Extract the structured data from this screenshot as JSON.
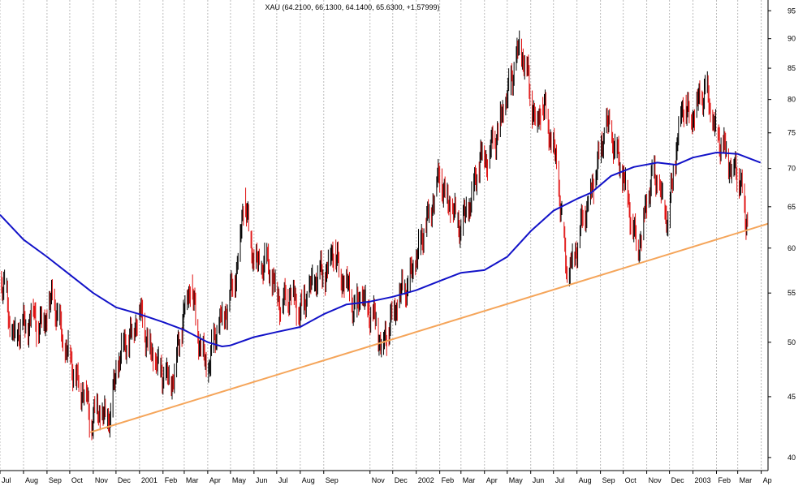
{
  "chart_data": {
    "type": "line",
    "subtype": "ohlc-bars",
    "title": "XAU (64.2100, 66.1300, 64.1400, 65.6300, +1.57999)",
    "xlabel": "",
    "ylabel": "",
    "y_scale": "log",
    "ylim": [
      39,
      97
    ],
    "y_ticks": [
      40,
      45,
      50,
      55,
      60,
      65,
      70,
      75,
      80,
      85,
      90,
      95
    ],
    "y_tick_labels": [
      "40",
      "45",
      "50",
      "55",
      "60",
      "65",
      "70",
      "75",
      "80",
      "85",
      "90",
      "95"
    ],
    "x_range": [
      "2000-07-01",
      "2003-04-10"
    ],
    "x_ticks": [
      {
        "label": "Jul",
        "date": "2000-07-01"
      },
      {
        "label": "Aug",
        "date": "2000-08-01"
      },
      {
        "label": "Sep",
        "date": "2000-09-01"
      },
      {
        "label": "Oct",
        "date": "2000-10-01"
      },
      {
        "label": "Nov",
        "date": "2000-11-01"
      },
      {
        "label": "Dec",
        "date": "2000-12-01"
      },
      {
        "label": "2001",
        "date": "2001-01-01"
      },
      {
        "label": "Feb",
        "date": "2001-02-01"
      },
      {
        "label": "Mar",
        "date": "2001-03-01"
      },
      {
        "label": "Apr",
        "date": "2001-04-01"
      },
      {
        "label": "May",
        "date": "2001-05-01"
      },
      {
        "label": "Jun",
        "date": "2001-06-01"
      },
      {
        "label": "Jul",
        "date": "2001-07-01"
      },
      {
        "label": "Aug",
        "date": "2001-08-01"
      },
      {
        "label": "Sep",
        "date": "2001-09-01"
      },
      {
        "label": "Nov",
        "date": "2001-11-01"
      },
      {
        "label": "Dec",
        "date": "2001-12-01"
      },
      {
        "label": "2002",
        "date": "2002-01-01"
      },
      {
        "label": "Feb",
        "date": "2002-02-01"
      },
      {
        "label": "Mar",
        "date": "2002-03-01"
      },
      {
        "label": "Apr",
        "date": "2002-04-01"
      },
      {
        "label": "May",
        "date": "2002-05-01"
      },
      {
        "label": "Jun",
        "date": "2002-06-01"
      },
      {
        "label": "Jul",
        "date": "2002-07-01"
      },
      {
        "label": "Aug",
        "date": "2002-08-01"
      },
      {
        "label": "Sep",
        "date": "2002-09-01"
      },
      {
        "label": "Oct",
        "date": "2002-10-01"
      },
      {
        "label": "Nov",
        "date": "2002-11-01"
      },
      {
        "label": "Dec",
        "date": "2002-12-01"
      },
      {
        "label": "2003",
        "date": "2003-01-01"
      },
      {
        "label": "Feb",
        "date": "2003-02-01"
      },
      {
        "label": "Mar",
        "date": "2003-03-01"
      },
      {
        "label": "Ap",
        "date": "2003-04-01"
      }
    ],
    "grid": true,
    "price_closes": [
      [
        "2000-07-01",
        56.5
      ],
      [
        "2000-07-08",
        55.5
      ],
      [
        "2000-07-15",
        51.0
      ],
      [
        "2000-07-22",
        50.5
      ],
      [
        "2000-07-29",
        52.0
      ],
      [
        "2000-08-05",
        51.0
      ],
      [
        "2000-08-12",
        53.5
      ],
      [
        "2000-08-19",
        51.5
      ],
      [
        "2000-08-26",
        52.0
      ],
      [
        "2000-09-02",
        53.0
      ],
      [
        "2000-09-09",
        54.5
      ],
      [
        "2000-09-16",
        52.5
      ],
      [
        "2000-09-23",
        49.5
      ],
      [
        "2000-09-30",
        49.0
      ],
      [
        "2000-10-07",
        47.0
      ],
      [
        "2000-10-14",
        45.5
      ],
      [
        "2000-10-21",
        46.0
      ],
      [
        "2000-10-28",
        42.5
      ],
      [
        "2000-11-04",
        44.0
      ],
      [
        "2000-11-11",
        43.5
      ],
      [
        "2000-11-18",
        43.0
      ],
      [
        "2000-11-25",
        44.0
      ],
      [
        "2000-12-02",
        47.5
      ],
      [
        "2000-12-09",
        49.5
      ],
      [
        "2000-12-16",
        50.0
      ],
      [
        "2000-12-23",
        51.0
      ],
      [
        "2000-12-30",
        53.0
      ],
      [
        "2001-01-06",
        52.0
      ],
      [
        "2001-01-13",
        49.5
      ],
      [
        "2001-01-20",
        48.5
      ],
      [
        "2001-01-27",
        47.5
      ],
      [
        "2001-02-03",
        47.0
      ],
      [
        "2001-02-10",
        46.0
      ],
      [
        "2001-02-17",
        47.5
      ],
      [
        "2001-02-24",
        51.0
      ],
      [
        "2001-03-03",
        54.0
      ],
      [
        "2001-03-10",
        56.0
      ],
      [
        "2001-03-17",
        51.5
      ],
      [
        "2001-03-24",
        49.5
      ],
      [
        "2001-03-31",
        47.0
      ],
      [
        "2001-04-07",
        49.5
      ],
      [
        "2001-04-14",
        51.5
      ],
      [
        "2001-04-21",
        52.5
      ],
      [
        "2001-04-28",
        54.0
      ],
      [
        "2001-05-05",
        56.0
      ],
      [
        "2001-05-12",
        59.0
      ],
      [
        "2001-05-19",
        66.5
      ],
      [
        "2001-05-26",
        61.5
      ],
      [
        "2001-06-02",
        58.5
      ],
      [
        "2001-06-09",
        57.5
      ],
      [
        "2001-06-16",
        59.0
      ],
      [
        "2001-06-23",
        57.0
      ],
      [
        "2001-06-30",
        55.5
      ],
      [
        "2001-07-07",
        53.5
      ],
      [
        "2001-07-14",
        54.5
      ],
      [
        "2001-07-21",
        55.5
      ],
      [
        "2001-07-28",
        53.0
      ],
      [
        "2001-08-04",
        53.5
      ],
      [
        "2001-08-11",
        55.0
      ],
      [
        "2001-08-18",
        56.0
      ],
      [
        "2001-08-25",
        57.5
      ],
      [
        "2001-09-01",
        56.5
      ],
      [
        "2001-09-08",
        58.5
      ],
      [
        "2001-09-15",
        60.0
      ],
      [
        "2001-09-22",
        57.0
      ],
      [
        "2001-09-29",
        56.5
      ],
      [
        "2001-10-06",
        54.5
      ],
      [
        "2001-10-13",
        53.0
      ],
      [
        "2001-10-20",
        55.0
      ],
      [
        "2001-10-27",
        53.5
      ],
      [
        "2001-11-03",
        53.0
      ],
      [
        "2001-11-10",
        51.5
      ],
      [
        "2001-11-17",
        49.5
      ],
      [
        "2001-11-24",
        51.0
      ],
      [
        "2001-12-01",
        53.0
      ],
      [
        "2001-12-08",
        54.0
      ],
      [
        "2001-12-15",
        55.5
      ],
      [
        "2001-12-22",
        56.0
      ],
      [
        "2001-12-29",
        58.0
      ],
      [
        "2002-01-05",
        60.0
      ],
      [
        "2002-01-12",
        62.5
      ],
      [
        "2002-01-19",
        64.0
      ],
      [
        "2002-01-26",
        67.5
      ],
      [
        "2002-02-02",
        69.0
      ],
      [
        "2002-02-09",
        66.0
      ],
      [
        "2002-02-16",
        65.0
      ],
      [
        "2002-02-23",
        63.5
      ],
      [
        "2002-03-02",
        62.5
      ],
      [
        "2002-03-09",
        64.5
      ],
      [
        "2002-03-16",
        66.5
      ],
      [
        "2002-03-23",
        70.0
      ],
      [
        "2002-03-30",
        72.5
      ],
      [
        "2002-04-06",
        71.0
      ],
      [
        "2002-04-13",
        74.0
      ],
      [
        "2002-04-20",
        75.5
      ],
      [
        "2002-04-27",
        79.0
      ],
      [
        "2002-05-04",
        82.0
      ],
      [
        "2002-05-11",
        85.5
      ],
      [
        "2002-05-18",
        88.5
      ],
      [
        "2002-05-25",
        86.0
      ],
      [
        "2002-06-01",
        80.5
      ],
      [
        "2002-06-08",
        76.0
      ],
      [
        "2002-06-15",
        79.0
      ],
      [
        "2002-06-22",
        77.5
      ],
      [
        "2002-06-29",
        73.5
      ],
      [
        "2002-07-06",
        70.0
      ],
      [
        "2002-07-13",
        62.0
      ],
      [
        "2002-07-20",
        56.5
      ],
      [
        "2002-07-27",
        59.0
      ],
      [
        "2002-08-03",
        61.0
      ],
      [
        "2002-08-10",
        64.0
      ],
      [
        "2002-08-17",
        66.0
      ],
      [
        "2002-08-24",
        68.5
      ],
      [
        "2002-08-31",
        72.0
      ],
      [
        "2002-09-07",
        76.0
      ],
      [
        "2002-09-14",
        75.5
      ],
      [
        "2002-09-21",
        72.5
      ],
      [
        "2002-09-28",
        70.0
      ],
      [
        "2002-10-05",
        67.5
      ],
      [
        "2002-10-12",
        63.0
      ],
      [
        "2002-10-19",
        60.0
      ],
      [
        "2002-10-26",
        62.0
      ],
      [
        "2002-11-02",
        66.0
      ],
      [
        "2002-11-09",
        69.5
      ],
      [
        "2002-11-16",
        68.0
      ],
      [
        "2002-11-23",
        65.0
      ],
      [
        "2002-11-30",
        63.5
      ],
      [
        "2002-12-07",
        70.0
      ],
      [
        "2002-12-14",
        76.5
      ],
      [
        "2002-12-21",
        79.5
      ],
      [
        "2002-12-28",
        77.0
      ],
      [
        "2003-01-04",
        78.5
      ],
      [
        "2003-01-11",
        80.0
      ],
      [
        "2003-01-18",
        82.0
      ],
      [
        "2003-01-25",
        77.5
      ],
      [
        "2003-02-01",
        75.0
      ],
      [
        "2003-02-08",
        73.5
      ],
      [
        "2003-02-15",
        71.5
      ],
      [
        "2003-02-22",
        70.0
      ],
      [
        "2003-03-01",
        69.5
      ],
      [
        "2003-03-08",
        67.0
      ],
      [
        "2003-03-12",
        62.5
      ],
      [
        "2003-03-15",
        65.6
      ]
    ],
    "series": [
      {
        "name": "",
        "kind": "moving-average",
        "color": "#1212c8",
        "points": [
          [
            "2000-07-01",
            64.0
          ],
          [
            "2000-08-01",
            61.0
          ],
          [
            "2000-09-01",
            59.0
          ],
          [
            "2000-10-01",
            57.0
          ],
          [
            "2000-11-01",
            55.0
          ],
          [
            "2000-12-01",
            53.5
          ],
          [
            "2001-01-01",
            52.8
          ],
          [
            "2001-02-01",
            52.0
          ],
          [
            "2001-03-01",
            51.2
          ],
          [
            "2001-04-01",
            50.0
          ],
          [
            "2001-04-20",
            49.6
          ],
          [
            "2001-05-01",
            49.7
          ],
          [
            "2001-06-01",
            50.5
          ],
          [
            "2001-07-01",
            51.0
          ],
          [
            "2001-08-01",
            51.5
          ],
          [
            "2001-09-01",
            52.8
          ],
          [
            "2001-10-01",
            53.8
          ],
          [
            "2001-11-01",
            54.1
          ],
          [
            "2001-12-01",
            54.6
          ],
          [
            "2002-01-01",
            55.3
          ],
          [
            "2002-02-01",
            56.3
          ],
          [
            "2002-03-01",
            57.2
          ],
          [
            "2002-04-01",
            57.5
          ],
          [
            "2002-05-01",
            59.0
          ],
          [
            "2002-06-01",
            62.0
          ],
          [
            "2002-07-01",
            64.5
          ],
          [
            "2002-08-01",
            66.0
          ],
          [
            "2002-08-20",
            66.8
          ],
          [
            "2002-09-15",
            69.0
          ],
          [
            "2002-10-15",
            70.2
          ],
          [
            "2002-11-15",
            70.8
          ],
          [
            "2002-12-10",
            70.5
          ],
          [
            "2003-01-01",
            71.5
          ],
          [
            "2003-02-01",
            72.2
          ],
          [
            "2003-03-01",
            72.0
          ],
          [
            "2003-03-31",
            70.8
          ]
        ]
      },
      {
        "name": "",
        "kind": "trendline",
        "color": "#f5a55a",
        "points": [
          [
            "2000-10-28",
            42.0
          ],
          [
            "2003-04-10",
            62.9
          ]
        ]
      }
    ],
    "colors": {
      "up_bar": "#000000",
      "down_bar": "#e01010",
      "grid": "#bbbbbb"
    }
  }
}
